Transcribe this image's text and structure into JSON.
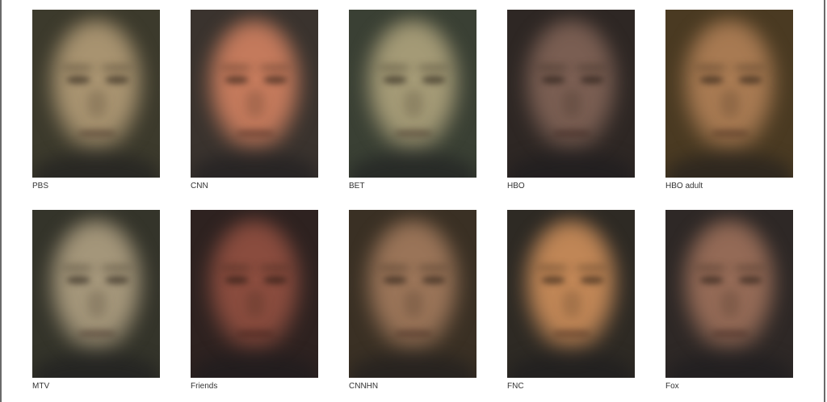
{
  "faces": [
    {
      "label": "PBS",
      "bg": "#3c3a2c",
      "skin": "#a89370"
    },
    {
      "label": "CNN",
      "bg": "#3a332e",
      "skin": "#c47a5c"
    },
    {
      "label": "BET",
      "bg": "#3a4034",
      "skin": "#a49a76"
    },
    {
      "label": "HBO",
      "bg": "#2e2724",
      "skin": "#7a5e52"
    },
    {
      "label": "HBO adult",
      "bg": "#4a3a22",
      "skin": "#a87a52"
    },
    {
      "label": "MTV",
      "bg": "#34342a",
      "skin": "#a4967a"
    },
    {
      "label": "Friends",
      "bg": "#2e2220",
      "skin": "#8a4c3e"
    },
    {
      "label": "CNNHN",
      "bg": "#3a3024",
      "skin": "#9a7458"
    },
    {
      "label": "FNC",
      "bg": "#2e2a24",
      "skin": "#c08656"
    },
    {
      "label": "Fox",
      "bg": "#2e2826",
      "skin": "#946a56"
    }
  ]
}
